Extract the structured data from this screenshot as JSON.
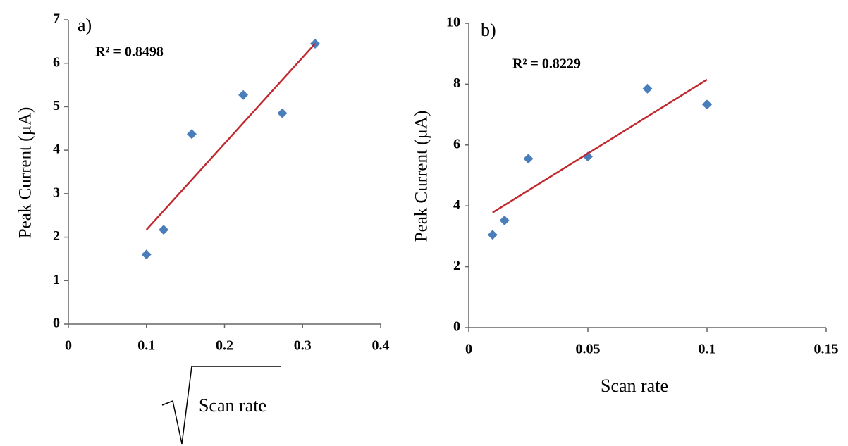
{
  "chart_data": [
    {
      "type": "scatter",
      "panel_label": "a)",
      "annotation": "R² = 0.8498",
      "y_label": "Peak Current (µA)",
      "x_label": "Scan rate",
      "x": [
        0.1,
        0.122,
        0.158,
        0.224,
        0.274,
        0.316
      ],
      "values": [
        1.6,
        2.17,
        4.37,
        5.27,
        4.85,
        6.45
      ],
      "color": "#4a7ebb",
      "xlim": [
        0,
        0.4
      ],
      "ylim": [
        0,
        7
      ],
      "xticks": [
        0,
        0.1,
        0.2,
        0.3,
        0.4
      ],
      "yticks": [
        0,
        1,
        2,
        3,
        4,
        5,
        6,
        7
      ],
      "trendline": {
        "x": [
          0.1,
          0.316
        ],
        "values": [
          2.17,
          6.45
        ],
        "color": "#c0282d"
      }
    },
    {
      "type": "scatter",
      "panel_label": "b)",
      "annotation": "R² = 0.8229",
      "y_label": "Peak Current (µA)",
      "x_label": "Scan rate",
      "x": [
        0.01,
        0.015,
        0.025,
        0.05,
        0.075,
        0.1
      ],
      "values": [
        3.05,
        3.52,
        5.55,
        5.62,
        7.85,
        7.33
      ],
      "color": "#4a7ebb",
      "xlim": [
        0,
        0.15
      ],
      "ylim": [
        0,
        10
      ],
      "xticks": [
        0,
        0.05,
        0.1,
        0.15
      ],
      "yticks": [
        0,
        2,
        4,
        6,
        8,
        10
      ],
      "trendline": {
        "x": [
          0.01,
          0.1
        ],
        "values": [
          3.78,
          8.15
        ],
        "color": "#c0282d"
      }
    }
  ]
}
